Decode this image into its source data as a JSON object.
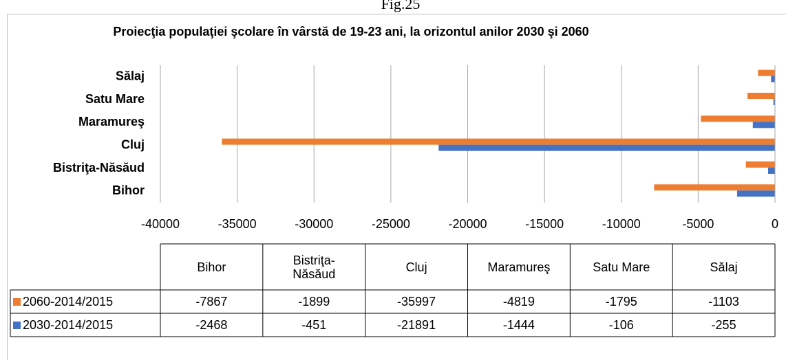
{
  "fig_label": "Fig.25",
  "chart_data": {
    "type": "bar",
    "orientation": "horizontal",
    "title": "Proiecţia populaţiei şcolare în vârstă de 19-23 ani, la orizontul anilor 2030 şi 2060",
    "categories": [
      "Bihor",
      "Bistriţa-Năsăud",
      "Cluj",
      "Maramureş",
      "Satu Mare",
      "Sălaj"
    ],
    "series": [
      {
        "name": "2060-2014/2015",
        "color": "#ed7d31",
        "values": [
          -7867,
          -1899,
          -35997,
          -4819,
          -1795,
          -1103
        ]
      },
      {
        "name": "2030-2014/2015",
        "color": "#4472c4",
        "values": [
          -2468,
          -451,
          -21891,
          -1444,
          -106,
          -255
        ]
      }
    ],
    "xlim": [
      -40000,
      0
    ],
    "xticks": [
      -40000,
      -35000,
      -30000,
      -25000,
      -20000,
      -15000,
      -10000,
      -5000,
      0
    ],
    "grid": true,
    "data_table": true
  }
}
